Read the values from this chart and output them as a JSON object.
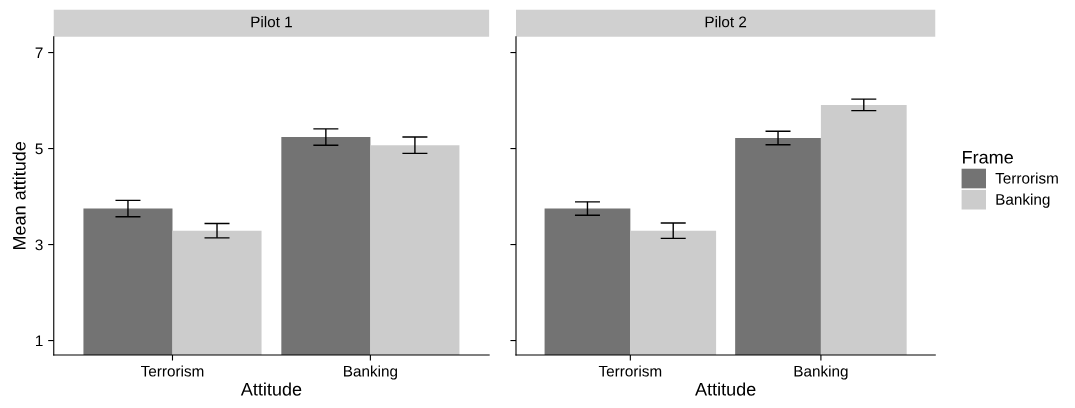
{
  "chart_data": [
    {
      "type": "bar",
      "title": "Pilot 1",
      "xlabel": "Attitude",
      "ylabel": "Mean attitude",
      "categories": [
        "Terrorism",
        "Banking"
      ],
      "ylim": [
        0.7,
        7.33
      ],
      "yticks": [
        1,
        3,
        5,
        7
      ],
      "grid": false,
      "legend": false,
      "series": [
        {
          "color": "#737373",
          "values": [
            3.75,
            5.24
          ],
          "errors": [
            0.17,
            0.17
          ]
        },
        {
          "color": "#cccccc",
          "values": [
            3.29,
            5.07
          ],
          "errors": [
            0.15,
            0.17
          ]
        }
      ]
    },
    {
      "type": "bar",
      "title": "Pilot 2",
      "xlabel": "Attitude",
      "categories": [
        "Terrorism",
        "Banking"
      ],
      "ylim": [
        0.7,
        7.33
      ],
      "yticks": [
        1,
        3,
        5,
        7
      ],
      "grid": false,
      "legend": "right",
      "legend_title": "Frame",
      "tick_labels": "x",
      "series": [
        {
          "name": "Terrorism",
          "color": "#737373",
          "values": [
            3.75,
            5.22
          ],
          "errors": [
            0.14,
            0.14
          ]
        },
        {
          "name": "Banking",
          "color": "#cccccc",
          "values": [
            3.29,
            5.91
          ],
          "errors": [
            0.16,
            0.12
          ]
        }
      ]
    }
  ]
}
